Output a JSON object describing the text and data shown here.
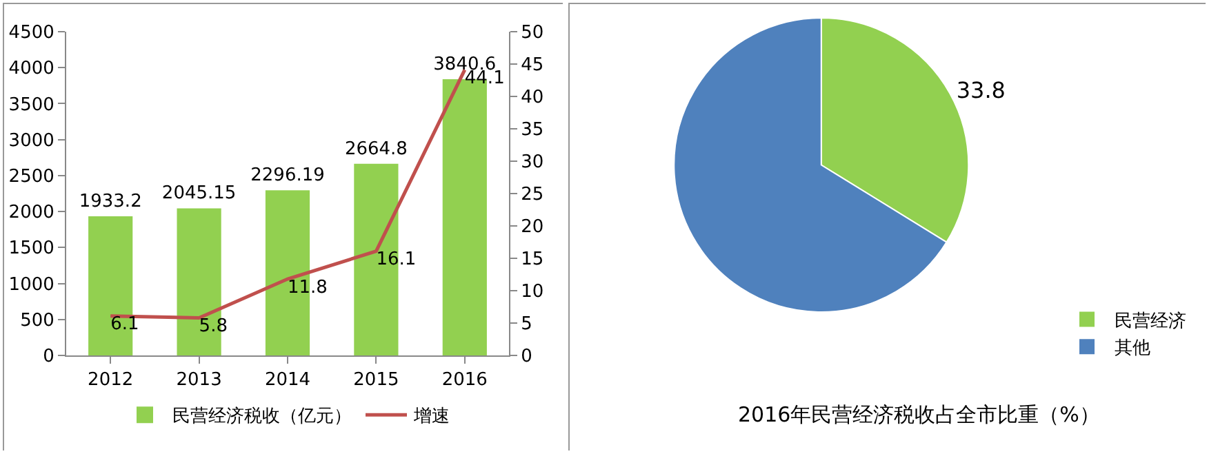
{
  "chart_data": [
    {
      "type": "bar",
      "categories": [
        "2012",
        "2013",
        "2014",
        "2015",
        "2016"
      ],
      "series": [
        {
          "name": "民营经济税收（亿元）",
          "color": "#92d050",
          "values": [
            1933.2,
            2045.15,
            2296.19,
            2664.8,
            3840.6
          ]
        },
        {
          "name": "增速",
          "type": "line",
          "axis": "y2",
          "color": "#c0504d",
          "values": [
            6.1,
            5.8,
            11.8,
            16.1,
            44.1
          ]
        }
      ],
      "ylim": [
        0,
        4500
      ],
      "yticks": [
        0,
        500,
        1000,
        1500,
        2000,
        2500,
        3000,
        3500,
        4000,
        4500
      ],
      "y2lim": [
        0,
        50
      ],
      "y2ticks": [
        0,
        5,
        10,
        15,
        20,
        25,
        30,
        35,
        40,
        45,
        50
      ],
      "data_labels": true,
      "legend": "bottom",
      "grid": false,
      "marker": "none"
    },
    {
      "type": "pie",
      "title": "2016年民营经济税收占全市比重（%）",
      "categories": [
        "民营经济",
        "其他"
      ],
      "values": [
        33.8,
        66.2
      ],
      "colors": [
        "#92d050",
        "#4f81bd"
      ],
      "value_labels": [
        "33.8",
        null
      ],
      "legend": "right"
    }
  ]
}
